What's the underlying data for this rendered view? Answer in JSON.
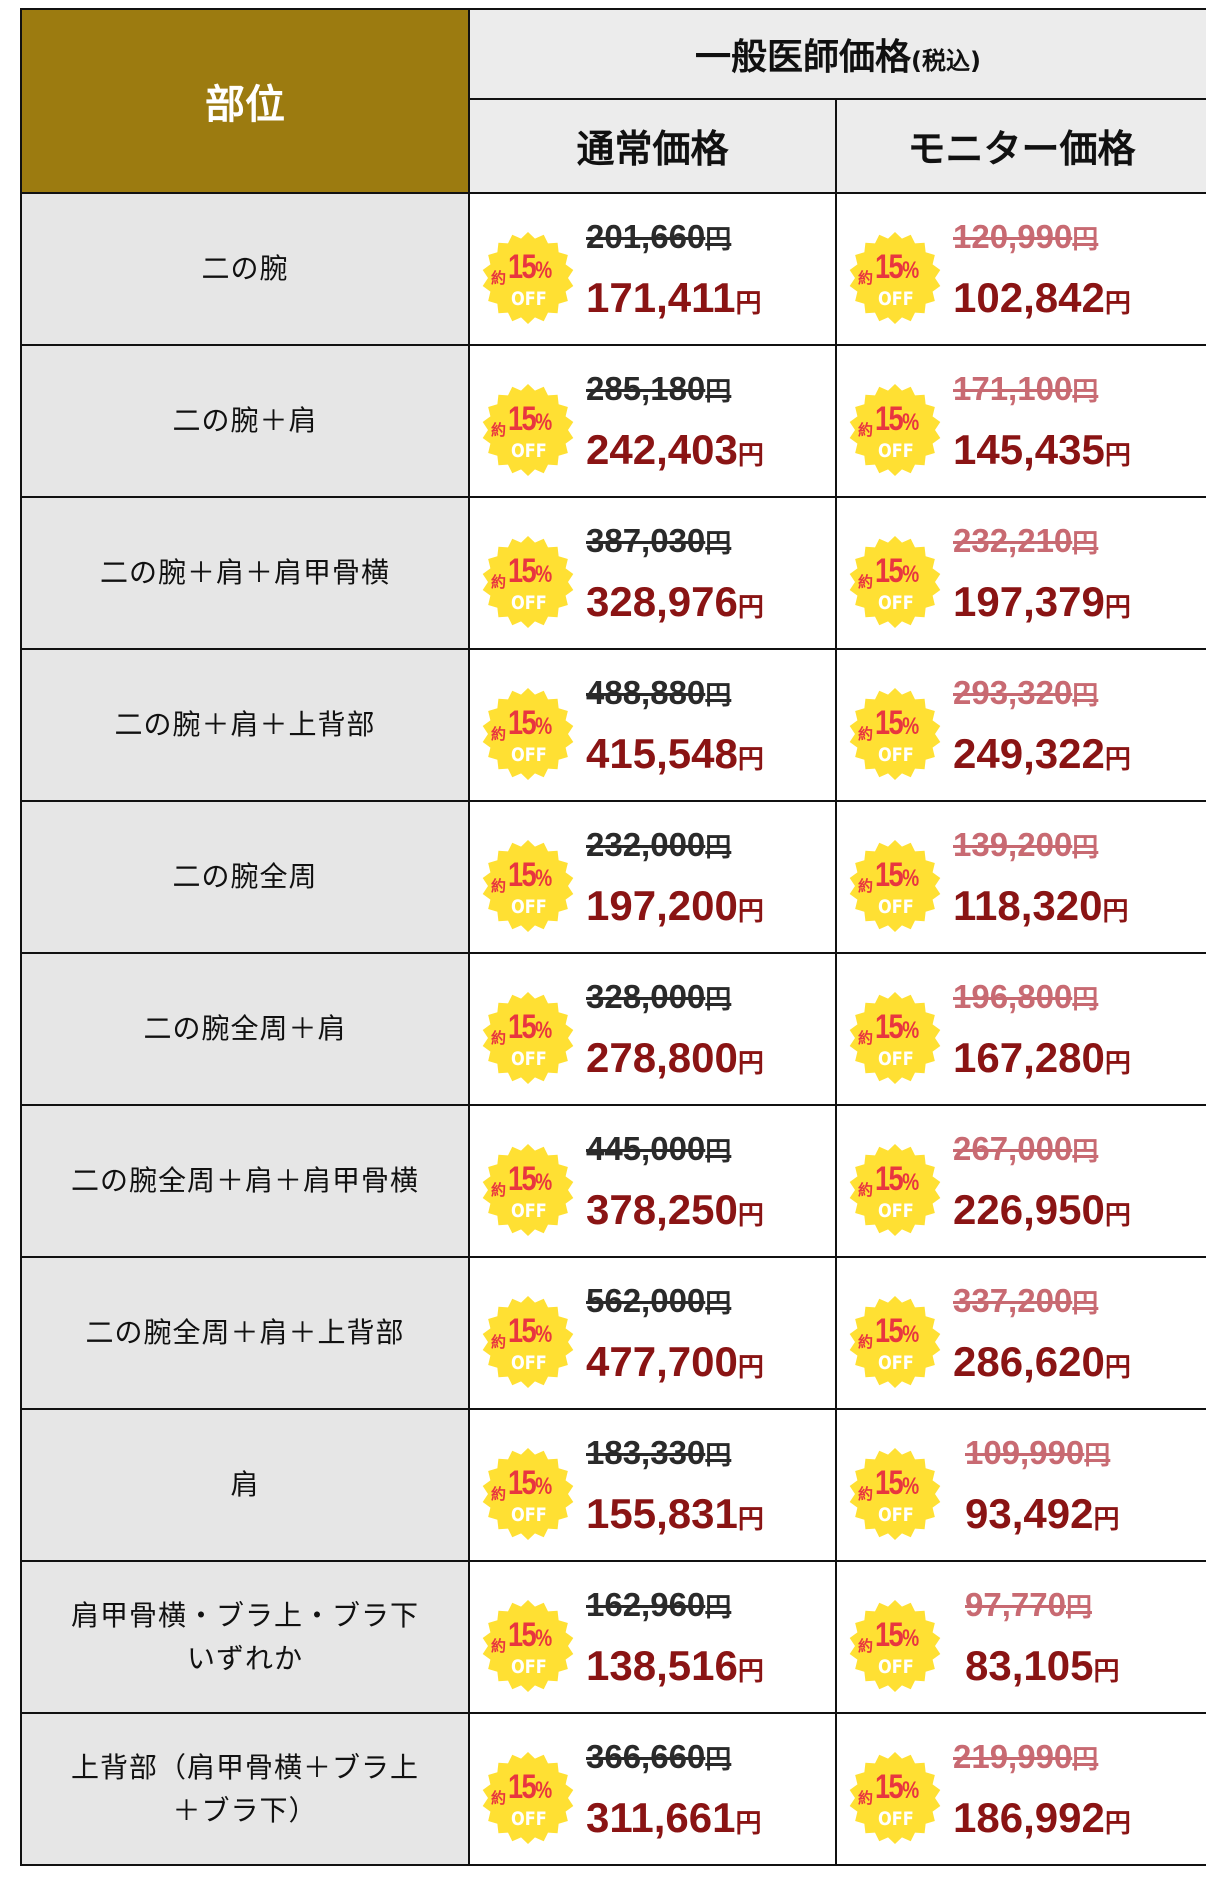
{
  "header": {
    "part_label": "部位",
    "group_label": "一般医師価格",
    "group_tax": "(税込)",
    "regular_label": "通常価格",
    "monitor_label": "モニター価格"
  },
  "badge": {
    "prefix": "約",
    "percent": "15",
    "percent_sign": "%",
    "off": "OFF",
    "colors": {
      "fill": "#ffe033",
      "text": "#e8363f",
      "off_text": "#ffffff"
    }
  },
  "currency": "円",
  "colors": {
    "header_part_bg": "#9c7b10",
    "header_bg": "#ececec",
    "part_bg": "#e6e6e6",
    "regular_old": "#2a2a2a",
    "monitor_old": "#c86a72",
    "new_price": "#8a1414"
  },
  "rows": [
    {
      "part_line1": "二の腕",
      "part_line2": "",
      "regular_old": "201,660",
      "regular_new": "171,411",
      "monitor_old": "120,990",
      "monitor_new": "102,842"
    },
    {
      "part_line1": "二の腕＋肩",
      "part_line2": "",
      "regular_old": "285,180",
      "regular_new": "242,403",
      "monitor_old": "171,100",
      "monitor_new": "145,435"
    },
    {
      "part_line1": "二の腕＋肩＋肩甲骨横",
      "part_line2": "",
      "regular_old": "387,030",
      "regular_new": "328,976",
      "monitor_old": "232,210",
      "monitor_new": "197,379"
    },
    {
      "part_line1": "二の腕＋肩＋上背部",
      "part_line2": "",
      "regular_old": "488,880",
      "regular_new": "415,548",
      "monitor_old": "293,320",
      "monitor_new": "249,322"
    },
    {
      "part_line1": "二の腕全周",
      "part_line2": "",
      "regular_old": "232,000",
      "regular_new": "197,200",
      "monitor_old": "139,200",
      "monitor_new": "118,320"
    },
    {
      "part_line1": "二の腕全周＋肩",
      "part_line2": "",
      "regular_old": "328,000",
      "regular_new": "278,800",
      "monitor_old": "196,800",
      "monitor_new": "167,280"
    },
    {
      "part_line1": "二の腕全周＋肩＋肩甲骨横",
      "part_line2": "",
      "regular_old": "445,000",
      "regular_new": "378,250",
      "monitor_old": "267,000",
      "monitor_new": "226,950"
    },
    {
      "part_line1": "二の腕全周＋肩＋上背部",
      "part_line2": "",
      "regular_old": "562,000",
      "regular_new": "477,700",
      "monitor_old": "337,200",
      "monitor_new": "286,620"
    },
    {
      "part_line1": "肩",
      "part_line2": "",
      "regular_old": "183,330",
      "regular_new": "155,831",
      "monitor_old": "109,990",
      "monitor_new": "93,492"
    },
    {
      "part_line1": "肩甲骨横・ブラ上・ブラ下",
      "part_line2": "いずれか",
      "regular_old": "162,960",
      "regular_new": "138,516",
      "monitor_old": "97,770",
      "monitor_new": "83,105"
    },
    {
      "part_line1": "上背部（肩甲骨横＋ブラ上",
      "part_line2": "＋ブラ下）",
      "regular_old": "366,660",
      "regular_new": "311,661",
      "monitor_old": "219,990",
      "monitor_new": "186,992"
    }
  ]
}
